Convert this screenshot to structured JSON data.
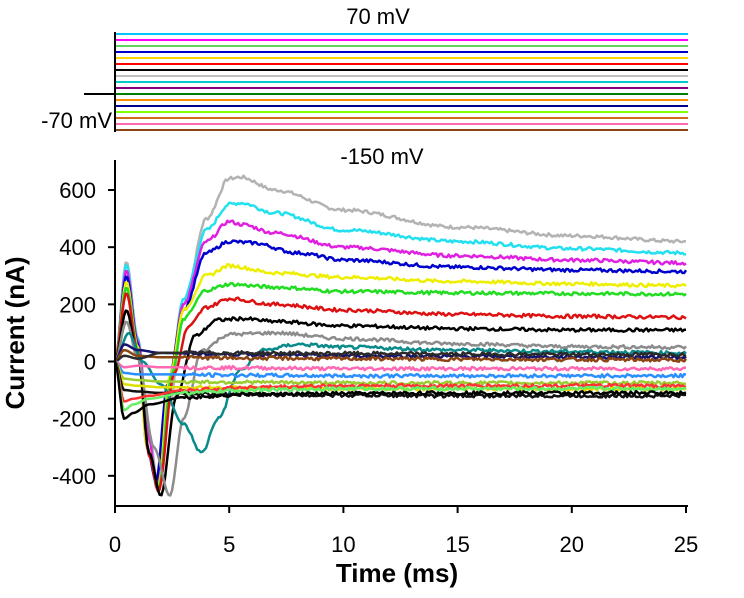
{
  "protocol": {
    "top_label": "70 mV",
    "holding_label": "-70 mV",
    "bottom_label": "-150 mV",
    "n_steps": 17,
    "step_colors": [
      "#00c8ff",
      "#ff00ff",
      "#5fd45f",
      "#0000cc",
      "#ffd700",
      "#ff0000",
      "#000000",
      "#c0c0c0",
      "#00cccc",
      "#800080",
      "#008000",
      "#ff8c00",
      "#00008b",
      "#7fff00",
      "#d2691e",
      "#ff69b4",
      "#8b4513"
    ]
  },
  "chart_data": {
    "type": "line",
    "xlabel": "Time (ms)",
    "ylabel": "Current (nA)",
    "xlim": [
      0,
      25
    ],
    "ylim": [
      -500,
      700
    ],
    "xticks": [
      0,
      5,
      10,
      15,
      20,
      25
    ],
    "yticks": [
      -400,
      -200,
      0,
      200,
      400,
      600
    ],
    "grid": false,
    "series": [
      {
        "color": "#b3b3b3",
        "values": [
          [
            0,
            0
          ],
          [
            0.5,
            350
          ],
          [
            1,
            80
          ],
          [
            1.5,
            -250
          ],
          [
            1.9,
            -450
          ],
          [
            2.4,
            -150
          ],
          [
            3,
            200
          ],
          [
            4,
            500
          ],
          [
            5,
            640
          ],
          [
            5.5,
            645
          ],
          [
            7,
            600
          ],
          [
            10,
            530
          ],
          [
            15,
            470
          ],
          [
            20,
            440
          ],
          [
            25,
            420
          ]
        ]
      },
      {
        "color": "#22e0f0",
        "values": [
          [
            0,
            0
          ],
          [
            0.5,
            340
          ],
          [
            1,
            80
          ],
          [
            1.5,
            -260
          ],
          [
            1.8,
            -440
          ],
          [
            2.3,
            -120
          ],
          [
            3,
            220
          ],
          [
            4,
            460
          ],
          [
            5,
            550
          ],
          [
            5.5,
            555
          ],
          [
            7,
            520
          ],
          [
            10,
            460
          ],
          [
            15,
            420
          ],
          [
            20,
            395
          ],
          [
            25,
            380
          ]
        ]
      },
      {
        "color": "#e020e0",
        "values": [
          [
            0,
            0
          ],
          [
            0.5,
            320
          ],
          [
            1,
            70
          ],
          [
            1.5,
            -270
          ],
          [
            1.8,
            -430
          ],
          [
            2.3,
            -100
          ],
          [
            3,
            200
          ],
          [
            4,
            420
          ],
          [
            5,
            490
          ],
          [
            5.5,
            480
          ],
          [
            7,
            450
          ],
          [
            10,
            400
          ],
          [
            15,
            370
          ],
          [
            20,
            355
          ],
          [
            25,
            345
          ]
        ]
      },
      {
        "color": "#0000cc",
        "values": [
          [
            0,
            0
          ],
          [
            0.5,
            300
          ],
          [
            1,
            60
          ],
          [
            1.4,
            -300
          ],
          [
            1.8,
            -420
          ],
          [
            2.3,
            -80
          ],
          [
            3,
            180
          ],
          [
            4,
            380
          ],
          [
            5,
            420
          ],
          [
            6,
            415
          ],
          [
            8,
            380
          ],
          [
            10,
            355
          ],
          [
            15,
            330
          ],
          [
            20,
            320
          ],
          [
            25,
            315
          ]
        ]
      },
      {
        "color": "#eeee00",
        "values": [
          [
            0,
            0
          ],
          [
            0.5,
            280
          ],
          [
            1,
            50
          ],
          [
            1.4,
            -300
          ],
          [
            1.9,
            -440
          ],
          [
            2.4,
            -50
          ],
          [
            3,
            180
          ],
          [
            4,
            300
          ],
          [
            5,
            335
          ],
          [
            7,
            310
          ],
          [
            10,
            295
          ],
          [
            15,
            280
          ],
          [
            20,
            272
          ],
          [
            25,
            265
          ]
        ]
      },
      {
        "color": "#22dd22",
        "values": [
          [
            0,
            0
          ],
          [
            0.5,
            260
          ],
          [
            1,
            40
          ],
          [
            1.5,
            -320
          ],
          [
            1.9,
            -450
          ],
          [
            2.5,
            -40
          ],
          [
            3,
            150
          ],
          [
            4,
            250
          ],
          [
            5,
            270
          ],
          [
            7,
            260
          ],
          [
            10,
            245
          ],
          [
            15,
            240
          ],
          [
            20,
            238
          ],
          [
            25,
            236
          ]
        ]
      },
      {
        "color": "#dd1111",
        "values": [
          [
            0,
            0
          ],
          [
            0.5,
            240
          ],
          [
            1,
            30
          ],
          [
            1.5,
            -330
          ],
          [
            1.9,
            -455
          ],
          [
            2.6,
            -40
          ],
          [
            3.2,
            120
          ],
          [
            4,
            190
          ],
          [
            5,
            220
          ],
          [
            7,
            200
          ],
          [
            10,
            180
          ],
          [
            15,
            165
          ],
          [
            20,
            158
          ],
          [
            25,
            155
          ]
        ]
      },
      {
        "color": "#000000",
        "values": [
          [
            0,
            0
          ],
          [
            0.5,
            180
          ],
          [
            1,
            20
          ],
          [
            1.5,
            -320
          ],
          [
            2.0,
            -470
          ],
          [
            2.7,
            -120
          ],
          [
            3.5,
            90
          ],
          [
            4.5,
            145
          ],
          [
            5.5,
            150
          ],
          [
            7,
            140
          ],
          [
            10,
            125
          ],
          [
            15,
            115
          ],
          [
            20,
            110
          ],
          [
            25,
            110
          ]
        ]
      },
      {
        "color": "#8c8c8c",
        "values": [
          [
            0,
            0
          ],
          [
            0.5,
            140
          ],
          [
            1,
            10
          ],
          [
            1.7,
            -300
          ],
          [
            2.4,
            -470
          ],
          [
            3.0,
            -200
          ],
          [
            3.8,
            40
          ],
          [
            5,
            95
          ],
          [
            7,
            100
          ],
          [
            10,
            80
          ],
          [
            15,
            62
          ],
          [
            20,
            52
          ],
          [
            25,
            50
          ]
        ]
      },
      {
        "color": "#0a8a8a",
        "values": [
          [
            0,
            0
          ],
          [
            0.6,
            100
          ],
          [
            1.2,
            0
          ],
          [
            2,
            -80
          ],
          [
            3,
            -220
          ],
          [
            3.8,
            -320
          ],
          [
            4.5,
            -200
          ],
          [
            5.5,
            -30
          ],
          [
            6.5,
            40
          ],
          [
            8,
            60
          ],
          [
            10,
            50
          ],
          [
            15,
            40
          ],
          [
            20,
            35
          ],
          [
            25,
            30
          ]
        ]
      },
      {
        "color": "#141470",
        "values": [
          [
            0,
            0
          ],
          [
            0.4,
            60
          ],
          [
            1,
            40
          ],
          [
            2,
            30
          ],
          [
            5,
            25
          ],
          [
            10,
            20
          ],
          [
            15,
            18
          ],
          [
            20,
            16
          ],
          [
            25,
            15
          ]
        ]
      },
      {
        "color": "#8b4513",
        "values": [
          [
            0,
            0
          ],
          [
            0.4,
            40
          ],
          [
            1,
            20
          ],
          [
            2,
            15
          ],
          [
            5,
            12
          ],
          [
            10,
            10
          ],
          [
            15,
            8
          ],
          [
            20,
            7
          ],
          [
            25,
            5
          ]
        ]
      },
      {
        "color": "#2a2a2a",
        "values": [
          [
            0,
            0
          ],
          [
            0.4,
            20
          ],
          [
            1,
            10
          ],
          [
            2,
            30
          ],
          [
            5,
            30
          ],
          [
            10,
            28
          ],
          [
            15,
            26
          ],
          [
            20,
            25
          ],
          [
            25,
            25
          ]
        ]
      },
      {
        "color": "#ff69b4",
        "values": [
          [
            0,
            0
          ],
          [
            0.4,
            -20
          ],
          [
            1,
            -15
          ],
          [
            2,
            -20
          ],
          [
            5,
            -22
          ],
          [
            10,
            -25
          ],
          [
            15,
            -25
          ],
          [
            20,
            -25
          ],
          [
            25,
            -25
          ]
        ]
      },
      {
        "color": "#2b8fff",
        "values": [
          [
            0,
            0
          ],
          [
            0.4,
            -40
          ],
          [
            1,
            -45
          ],
          [
            2,
            -45
          ],
          [
            5,
            -48
          ],
          [
            10,
            -50
          ],
          [
            15,
            -50
          ],
          [
            20,
            -50
          ],
          [
            25,
            -50
          ]
        ]
      },
      {
        "color": "#9acd32",
        "values": [
          [
            0,
            0
          ],
          [
            0.4,
            -60
          ],
          [
            1,
            -65
          ],
          [
            2,
            -70
          ],
          [
            5,
            -72
          ],
          [
            10,
            -75
          ],
          [
            15,
            -75
          ],
          [
            20,
            -75
          ],
          [
            25,
            -75
          ]
        ]
      },
      {
        "color": "#dddd00",
        "values": [
          [
            0,
            0
          ],
          [
            0.4,
            -80
          ],
          [
            1,
            -85
          ],
          [
            2,
            -90
          ],
          [
            5,
            -92
          ],
          [
            10,
            -95
          ],
          [
            15,
            -95
          ],
          [
            20,
            -95
          ],
          [
            25,
            -95
          ]
        ]
      },
      {
        "color": "#111111",
        "values": [
          [
            0,
            0
          ],
          [
            0.4,
            -100
          ],
          [
            1,
            -105
          ],
          [
            2,
            -110
          ],
          [
            5,
            -115
          ],
          [
            10,
            -118
          ],
          [
            15,
            -120
          ],
          [
            20,
            -120
          ],
          [
            25,
            -120
          ]
        ]
      },
      {
        "color": "#ff3333",
        "values": [
          [
            0,
            0
          ],
          [
            0.4,
            -140
          ],
          [
            0.8,
            -130
          ],
          [
            1.5,
            -120
          ],
          [
            3,
            -100
          ],
          [
            6,
            -90
          ],
          [
            10,
            -85
          ],
          [
            15,
            -85
          ],
          [
            20,
            -85
          ],
          [
            25,
            -85
          ]
        ]
      },
      {
        "color": "#66ee66",
        "values": [
          [
            0,
            0
          ],
          [
            0.4,
            -170
          ],
          [
            0.8,
            -150
          ],
          [
            1.5,
            -130
          ],
          [
            3,
            -110
          ],
          [
            6,
            -100
          ],
          [
            10,
            -95
          ],
          [
            15,
            -95
          ],
          [
            20,
            -95
          ],
          [
            25,
            -95
          ]
        ]
      },
      {
        "color": "#000000",
        "values": [
          [
            0,
            0
          ],
          [
            0.4,
            -200
          ],
          [
            0.8,
            -180
          ],
          [
            1.5,
            -150
          ],
          [
            3,
            -125
          ],
          [
            6,
            -115
          ],
          [
            10,
            -112
          ],
          [
            15,
            -110
          ],
          [
            20,
            -110
          ],
          [
            25,
            -110
          ]
        ]
      }
    ]
  }
}
